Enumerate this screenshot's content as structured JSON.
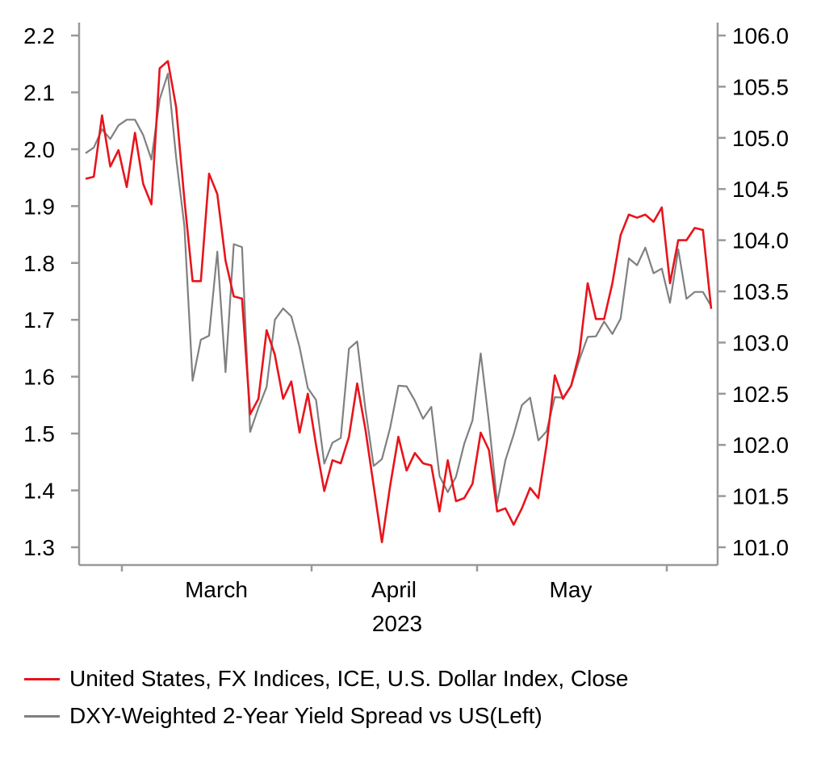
{
  "chart_data": {
    "type": "line",
    "x_axis": {
      "month_labels": [
        "March",
        "April",
        "May"
      ],
      "year_label": "2023"
    },
    "y_left": {
      "range": [
        1.3,
        2.2
      ],
      "ticks": [
        "1.3",
        "1.4",
        "1.5",
        "1.6",
        "1.7",
        "1.8",
        "1.9",
        "2.0",
        "2.1",
        "2.2"
      ]
    },
    "y_right": {
      "range": [
        101.0,
        106.0
      ],
      "ticks": [
        "101.0",
        "101.5",
        "102.0",
        "102.5",
        "103.0",
        "103.5",
        "104.0",
        "104.5",
        "105.0",
        "105.5",
        "106.0"
      ]
    },
    "series": [
      {
        "name": "United States, FX Indices, ICE, U.S. Dollar Index, Close",
        "axis": "right",
        "color": "#e8141c",
        "values": [
          104.6,
          104.62,
          105.22,
          104.72,
          104.88,
          104.52,
          105.05,
          104.55,
          104.35,
          105.68,
          105.75,
          105.3,
          104.4,
          103.6,
          103.6,
          104.65,
          104.45,
          103.8,
          103.45,
          103.43,
          102.3,
          102.45,
          103.12,
          102.88,
          102.45,
          102.62,
          102.12,
          102.5,
          102.0,
          101.55,
          101.85,
          101.82,
          102.08,
          102.6,
          102.15,
          101.6,
          101.05,
          101.6,
          102.08,
          101.75,
          101.92,
          101.82,
          101.8,
          101.35,
          101.85,
          101.45,
          101.48,
          101.62,
          102.12,
          101.95,
          101.35,
          101.38,
          101.22,
          101.38,
          101.58,
          101.48,
          102.0,
          102.68,
          102.45,
          102.58,
          102.9,
          103.58,
          103.23,
          103.23,
          103.58,
          104.05,
          104.25,
          104.22,
          104.25,
          104.18,
          104.32,
          103.58,
          104.0,
          104.0,
          104.12,
          104.1,
          103.33
        ]
      },
      {
        "name": "DXY-Weighted 2-Year Yield Spread vs US(Left)",
        "axis": "left",
        "color": "#808080",
        "values": [
          1.993,
          2.003,
          2.035,
          2.018,
          2.042,
          2.052,
          2.052,
          2.025,
          1.982,
          2.088,
          2.133,
          1.985,
          1.865,
          1.593,
          1.665,
          1.672,
          1.82,
          1.608,
          1.833,
          1.828,
          1.503,
          1.545,
          1.582,
          1.7,
          1.72,
          1.706,
          1.652,
          1.58,
          1.559,
          1.447,
          1.484,
          1.492,
          1.649,
          1.662,
          1.543,
          1.443,
          1.455,
          1.51,
          1.584,
          1.583,
          1.558,
          1.526,
          1.547,
          1.425,
          1.397,
          1.424,
          1.482,
          1.523,
          1.641,
          1.52,
          1.378,
          1.453,
          1.498,
          1.55,
          1.563,
          1.488,
          1.504,
          1.564,
          1.563,
          1.584,
          1.63,
          1.67,
          1.671,
          1.697,
          1.675,
          1.702,
          1.808,
          1.796,
          1.827,
          1.782,
          1.79,
          1.73,
          1.824,
          1.737,
          1.749,
          1.749,
          1.724
        ]
      }
    ],
    "grid": false,
    "legend_position": "bottom-left"
  }
}
